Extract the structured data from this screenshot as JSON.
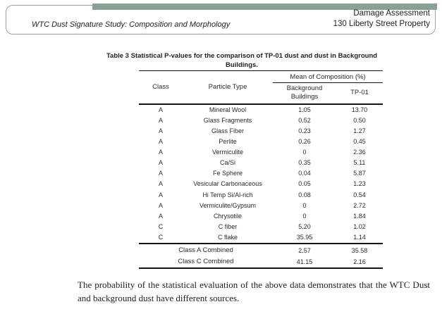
{
  "header": {
    "left_title": "WTC Dust Signature Study: Composition and Morphology",
    "right_line1": "Damage Assessment",
    "right_line2": "130 Liberty Street Property",
    "accent_color": "#8ba094"
  },
  "table": {
    "title_line1": "Table 3 Statistical P-values for the comparison of TP-01 dust and dust in Background",
    "title_line2": "Buildings.",
    "col_class": "Class",
    "col_particle": "Particle Type",
    "col_group": "Mean of Composition (%)",
    "col_bg": "Background Buildings",
    "col_tp": "TP-01",
    "rows": [
      {
        "class": "A",
        "particle": "Mineral Wool",
        "bg": "1.05",
        "tp": "13.70"
      },
      {
        "class": "A",
        "particle": "Glass Fragments",
        "bg": "0.52",
        "tp": "0.50"
      },
      {
        "class": "A",
        "particle": "Glass Fiber",
        "bg": "0.23",
        "tp": "1.27"
      },
      {
        "class": "A",
        "particle": "Perlite",
        "bg": "0.26",
        "tp": "0.45"
      },
      {
        "class": "A",
        "particle": "Vermiculite",
        "bg": "0",
        "tp": "2.36"
      },
      {
        "class": "A",
        "particle": "Ca/Si",
        "bg": "0.35",
        "tp": "5.11"
      },
      {
        "class": "A",
        "particle": "Fe Sphere",
        "bg": "0.04",
        "tp": "5.87"
      },
      {
        "class": "A",
        "particle": "Vesicular Carbonaceous",
        "bg": "0.05",
        "tp": "1.23"
      },
      {
        "class": "A",
        "particle": "Hi Temp Si/Al-rich",
        "bg": "0.08",
        "tp": "0.54"
      },
      {
        "class": "A",
        "particle": "Vermiculite/Gypsum",
        "bg": "0",
        "tp": "2.72"
      },
      {
        "class": "A",
        "particle": "Chrysotile",
        "bg": "0",
        "tp": "1.84"
      },
      {
        "class": "C",
        "particle": "C fiber",
        "bg": "5.20",
        "tp": "1.02"
      },
      {
        "class": "C",
        "particle": "C flake",
        "bg": "35.95",
        "tp": "1.14"
      }
    ],
    "summary": [
      {
        "label": "Class A Combined",
        "bg": "2.57",
        "tp": "35.58"
      },
      {
        "label": "Class C Combined",
        "bg": "41.15",
        "tp": "2.16"
      }
    ]
  },
  "footer": {
    "paragraph": "The probability of the statistical evaluation of the above data demonstrates that the WTC Dust and background dust have different sources."
  }
}
